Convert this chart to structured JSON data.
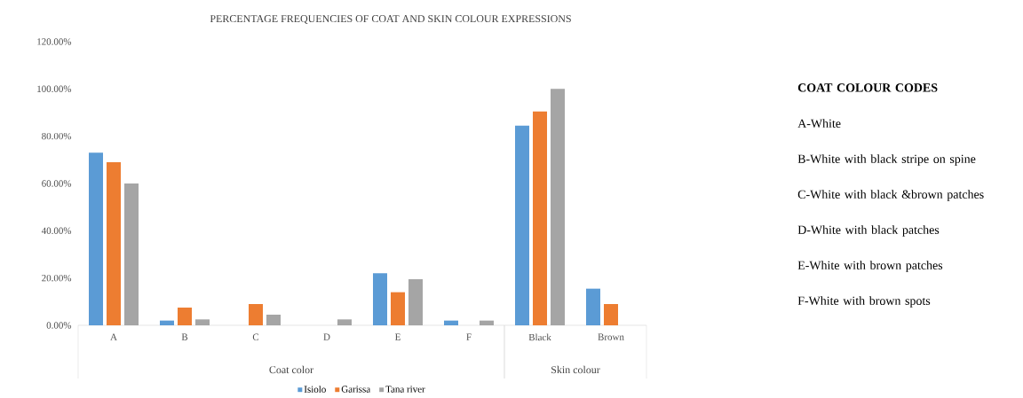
{
  "chart_data": {
    "type": "bar",
    "title": "PERCENTAGE FREQUENCIES OF COAT AND SKIN COLOUR EXPRESSIONS",
    "categories": [
      "A",
      "B",
      "C",
      "D",
      "E",
      "F",
      "Black",
      "Brown"
    ],
    "series": [
      {
        "name": "Isiolo",
        "color": "#5b9bd5",
        "values": [
          73,
          2,
          0,
          0,
          22,
          2,
          84.5,
          15.5
        ]
      },
      {
        "name": "Garissa",
        "color": "#ed7d31",
        "values": [
          69,
          7.5,
          9,
          0,
          14,
          0,
          90.5,
          9
        ]
      },
      {
        "name": "Tana river",
        "color": "#a5a5a5",
        "values": [
          60,
          2.5,
          4.5,
          2.5,
          19.5,
          2,
          100,
          0
        ]
      }
    ],
    "ylim": [
      0,
      120
    ],
    "yticks": [
      {
        "value": 0,
        "label": "0.00%"
      },
      {
        "value": 20,
        "label": "20.00%"
      },
      {
        "value": 40,
        "label": "40.00%"
      },
      {
        "value": 60,
        "label": "60.00%"
      },
      {
        "value": 80,
        "label": "80.00%"
      },
      {
        "value": 100,
        "label": "100.00%"
      },
      {
        "value": 120,
        "label": "120.00%"
      }
    ],
    "legend": "bottom",
    "annotations": [
      "Coat color",
      "Skin colour",
      "COAT COLOUR CODES",
      "A-White",
      "B-White with black stripe on spine",
      "C-White with black &brown patches",
      "D-White with black patches",
      "E-White with brown patches",
      "F-White with brown spots"
    ]
  }
}
